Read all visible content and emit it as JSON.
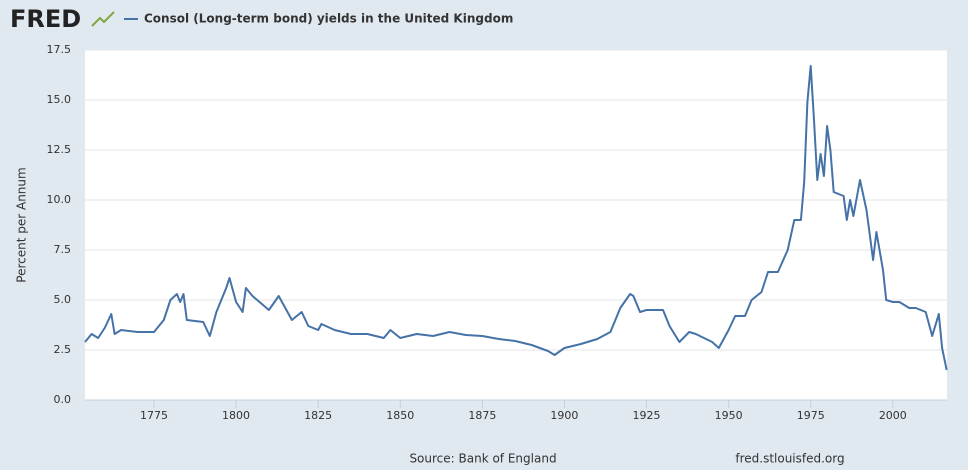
{
  "logo": "FRED",
  "chart_data": {
    "type": "line",
    "title": "Consol (Long-term bond) yields in the United Kingdom",
    "y_label": "Percent per Annum",
    "source": "Source: Bank of England",
    "site": "fred.stlouisfed.org",
    "xlim": [
      1754,
      2016.5
    ],
    "xticks": [
      1775,
      1800,
      1825,
      1850,
      1875,
      1900,
      1925,
      1950,
      1975,
      2000
    ],
    "ylim": [
      0,
      17.5
    ],
    "yticks": [
      {
        "value": 0,
        "label": "0.0"
      },
      2.5,
      {
        "value": 5,
        "label": "5.0"
      },
      7.5,
      {
        "value": 10,
        "label": "10.0"
      },
      12.5,
      {
        "value": 15,
        "label": "15.0"
      },
      17.5
    ],
    "grid": true,
    "series": [
      {
        "name": "Consol (Long-term bond) yields in the United Kingdom",
        "color": "#4572a7",
        "x": [
          1754,
          1756,
          1758,
          1760,
          1762,
          1763,
          1765,
          1770,
          1775,
          1778,
          1780,
          1782,
          1783,
          1784,
          1785,
          1790,
          1792,
          1794,
          1797,
          1798,
          1800,
          1802,
          1803,
          1805,
          1810,
          1813,
          1815,
          1817,
          1820,
          1822,
          1825,
          1826,
          1830,
          1835,
          1840,
          1845,
          1847,
          1850,
          1855,
          1860,
          1865,
          1870,
          1875,
          1880,
          1885,
          1890,
          1895,
          1897,
          1900,
          1905,
          1910,
          1914,
          1917,
          1920,
          1921,
          1923,
          1925,
          1930,
          1932,
          1935,
          1938,
          1940,
          1945,
          1947,
          1950,
          1952,
          1955,
          1957,
          1960,
          1962,
          1965,
          1968,
          1970,
          1972,
          1973,
          1974,
          1975,
          1976,
          1977,
          1978,
          1979,
          1980,
          1981,
          1982,
          1985,
          1986,
          1987,
          1988,
          1990,
          1992,
          1994,
          1995,
          1997,
          1998,
          2000,
          2002,
          2005,
          2007,
          2010,
          2012,
          2014,
          2015,
          2016.4
        ],
        "values": [
          2.9,
          3.3,
          3.1,
          3.6,
          4.3,
          3.3,
          3.5,
          3.4,
          3.4,
          4.0,
          5.0,
          5.3,
          4.9,
          5.3,
          4.0,
          3.9,
          3.2,
          4.4,
          5.6,
          6.1,
          4.9,
          4.4,
          5.6,
          5.2,
          4.5,
          5.2,
          4.6,
          4.0,
          4.4,
          3.7,
          3.5,
          3.8,
          3.5,
          3.3,
          3.3,
          3.1,
          3.5,
          3.1,
          3.3,
          3.2,
          3.4,
          3.25,
          3.2,
          3.05,
          2.95,
          2.75,
          2.45,
          2.25,
          2.6,
          2.8,
          3.05,
          3.4,
          4.6,
          5.3,
          5.2,
          4.4,
          4.5,
          4.5,
          3.7,
          2.9,
          3.4,
          3.3,
          2.9,
          2.6,
          3.5,
          4.2,
          4.2,
          5.0,
          5.4,
          6.4,
          6.4,
          7.5,
          9.0,
          9.0,
          10.9,
          14.9,
          16.7,
          14.0,
          11.0,
          12.3,
          11.2,
          13.7,
          12.5,
          10.4,
          10.2,
          9.0,
          10.0,
          9.2,
          11.0,
          9.5,
          7.0,
          8.4,
          6.5,
          5.0,
          4.9,
          4.9,
          4.6,
          4.6,
          4.4,
          3.2,
          4.3,
          2.6,
          1.5
        ]
      }
    ]
  }
}
